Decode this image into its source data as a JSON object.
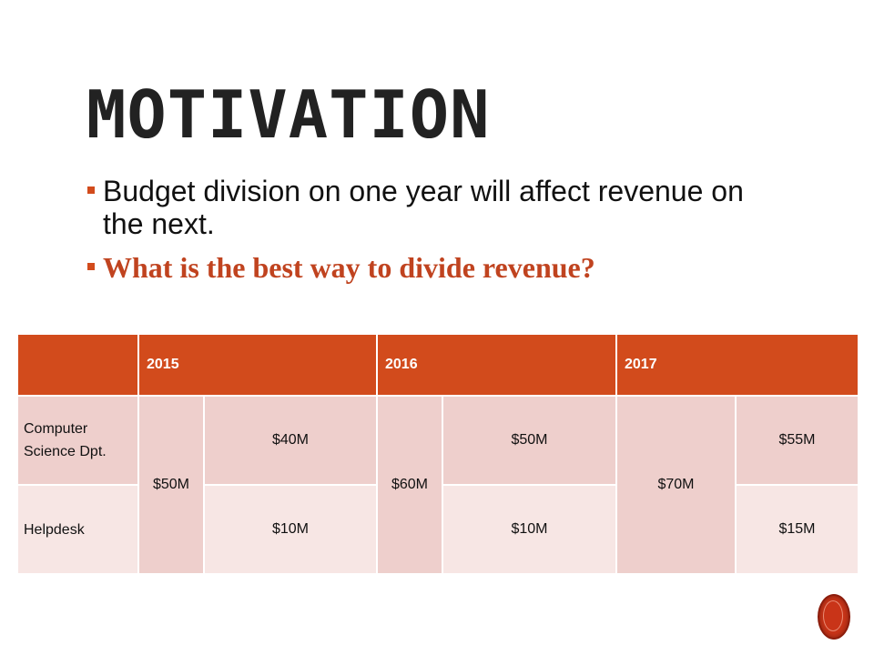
{
  "slide": {
    "title": "MOTIVATION",
    "bullets": [
      "Budget division on one year will affect revenue on the next.",
      "What is the best way to divide revenue?"
    ],
    "accent_color": "#d24b1c",
    "emphasis_color": "#c0431f"
  },
  "table": {
    "corner": "",
    "years": [
      "2015",
      "2016",
      "2017"
    ],
    "rows": [
      {
        "label": "Computer Science Dpt.",
        "values": [
          "$40M",
          "$50M",
          "$55M"
        ]
      },
      {
        "label": "Helpdesk",
        "values": [
          "$10M",
          "$10M",
          "$15M"
        ]
      }
    ],
    "totals": [
      "$50M",
      "$60M",
      "$70M"
    ]
  },
  "icons": {
    "corner_logo": "red-seal-icon"
  }
}
